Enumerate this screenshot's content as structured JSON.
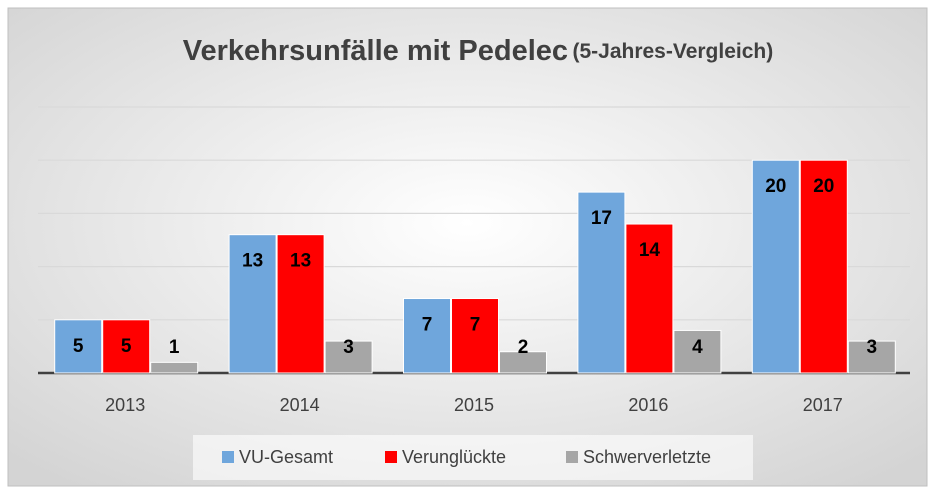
{
  "chart_data": {
    "type": "bar",
    "title": "Verkehrsunfälle mit Pedelec",
    "subtitle": "(5-Jahres-Vergleich)",
    "categories": [
      "2013",
      "2014",
      "2015",
      "2016",
      "2017"
    ],
    "series": [
      {
        "name": "VU-Gesamt",
        "color": "#6fa6dc",
        "values": [
          5,
          13,
          7,
          17,
          20
        ]
      },
      {
        "name": "Verunglückte",
        "color": "#ff0000",
        "values": [
          5,
          13,
          7,
          14,
          20
        ]
      },
      {
        "name": "Schwerverletzte",
        "color": "#a6a6a6",
        "values": [
          1,
          3,
          2,
          4,
          3
        ]
      }
    ],
    "ylim": [
      0,
      25
    ],
    "yticks": [
      0,
      5,
      10,
      15,
      20,
      25
    ],
    "grid": true,
    "legend": "bottom"
  }
}
